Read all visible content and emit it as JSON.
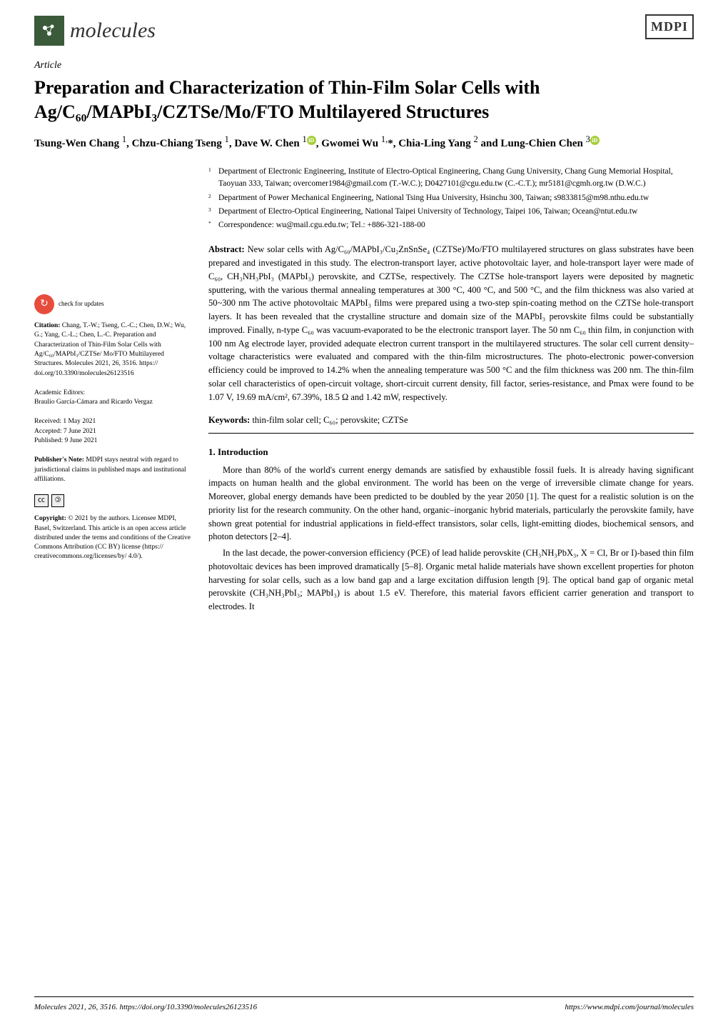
{
  "journal": {
    "name": "molecules",
    "publisher": "MDPI"
  },
  "article_type": "Article",
  "title": "Preparation and Characterization of Thin-Film Solar Cells with Ag/C₆₀/MAPbI₃/CZTSe/Mo/FTO Multilayered Structures",
  "authors_html": "Tsung-Wen Chang <sup>1</sup>, Chzu-Chiang Tseng <sup>1</sup>, Dave W. Chen <sup>1</sup><span class='orcid'>iD</span>, Gwomei Wu <sup>1,</sup>*, Chia-Ling Yang <sup>2</sup> and Lung-Chien Chen <sup>3</sup><span class='orcid'>iD</span>",
  "affiliations": [
    {
      "num": "1",
      "text": "Department of Electronic Engineering, Institute of Electro-Optical Engineering, Chang Gung University, Chang Gung Memorial Hospital, Taoyuan 333, Taiwan; overcomer1984@gmail.com (T.-W.C.); D0427101@cgu.edu.tw (C.-C.T.); mr5181@cgmh.org.tw (D.W.C.)"
    },
    {
      "num": "2",
      "text": "Department of Power Mechanical Engineering, National Tsing Hua University, Hsinchu 300, Taiwan; s9833815@m98.nthu.edu.tw"
    },
    {
      "num": "3",
      "text": "Department of Electro-Optical Engineering, National Taipei University of Technology, Taipei 106, Taiwan; Ocean@ntut.edu.tw"
    },
    {
      "num": "*",
      "text": "Correspondence: wu@mail.cgu.edu.tw; Tel.: +886-321-188-00"
    }
  ],
  "abstract_label": "Abstract:",
  "abstract": "New solar cells with Ag/C₆₀/MAPbI₃/Cu₂ZnSnSe₄ (CZTSe)/Mo/FTO multilayered structures on glass substrates have been prepared and investigated in this study. The electron-transport layer, active photovoltaic layer, and hole-transport layer were made of C₆₀, CH₃NH₃PbI₃ (MAPbI₃) perovskite, and CZTSe, respectively. The CZTSe hole-transport layers were deposited by magnetic sputtering, with the various thermal annealing temperatures at 300 °C, 400 °C, and 500 °C, and the film thickness was also varied at 50~300 nm The active photovoltaic MAPbI₃ films were prepared using a two-step spin-coating method on the CZTSe hole-transport layers. It has been revealed that the crystalline structure and domain size of the MAPbI₃ perovskite films could be substantially improved. Finally, n-type C₆₀ was vacuum-evaporated to be the electronic transport layer. The 50 nm C₆₀ thin film, in conjunction with 100 nm Ag electrode layer, provided adequate electron current transport in the multilayered structures. The solar cell current density–voltage characteristics were evaluated and compared with the thin-film microstructures. The photo-electronic power-conversion efficiency could be improved to 14.2% when the annealing temperature was 500 °C and the film thickness was 200 nm. The thin-film solar cell characteristics of open-circuit voltage, short-circuit current density, fill factor, series-resistance, and Pmax were found to be 1.07 V, 19.69 mA/cm², 67.39%, 18.5 Ω and 1.42 mW, respectively.",
  "keywords_label": "Keywords:",
  "keywords": "thin-film solar cell; C₆₀; perovskite; CZTSe",
  "section1_heading": "1. Introduction",
  "body_p1": "More than 80% of the world's current energy demands are satisfied by exhaustible fossil fuels. It is already having significant impacts on human health and the global environment. The world has been on the verge of irreversible climate change for years. Moreover, global energy demands have been predicted to be doubled by the year 2050 [1]. The quest for a realistic solution is on the priority list for the research community. On the other hand, organic–inorganic hybrid materials, particularly the perovskite family, have shown great potential for industrial applications in field-effect transistors, solar cells, light-emitting diodes, biochemical sensors, and photon detectors [2–4].",
  "body_p2": "In the last decade, the power-conversion efficiency (PCE) of lead halide perovskite (CH₃NH₃PbX₃, X = Cl, Br or I)-based thin film photovoltaic devices has been improved dramatically [5–8]. Organic metal halide materials have shown excellent properties for photon harvesting for solar cells, such as a low band gap and a large excitation diffusion length [9]. The optical band gap of organic metal perovskite (CH₃NH₃PbI₃; MAPbI₃) is about 1.5 eV. Therefore, this material favors efficient carrier generation and transport to electrodes. It",
  "sidebar": {
    "check_updates": "check for updates",
    "citation_label": "Citation:",
    "citation": "Chang, T.-W.; Tseng, C.-C.; Chen, D.W.; Wu, G.; Yang, C.-L.; Chen, L.-C. Preparation and Characterization of Thin-Film Solar Cells with Ag/C₆₀/MAPbI₃/CZTSe/ Mo/FTO Multilayered Structures. Molecules 2021, 26, 3516. https:// doi.org/10.3390/molecules26123516",
    "editors_label": "Academic Editors:",
    "editors": "Braulio García-Cámara and Ricardo Vergaz",
    "received": "Received: 1 May 2021",
    "accepted": "Accepted: 7 June 2021",
    "published": "Published: 9 June 2021",
    "pubnote_label": "Publisher's Note:",
    "pubnote": "MDPI stays neutral with regard to jurisdictional claims in published maps and institutional affiliations.",
    "copyright_label": "Copyright:",
    "copyright": "© 2021 by the authors. Licensee MDPI, Basel, Switzerland. This article is an open access article distributed under the terms and conditions of the Creative Commons Attribution (CC BY) license (https:// creativecommons.org/licenses/by/ 4.0/)."
  },
  "footer": {
    "left": "Molecules 2021, 26, 3516. https://doi.org/10.3390/molecules26123516",
    "right": "https://www.mdpi.com/journal/molecules"
  }
}
